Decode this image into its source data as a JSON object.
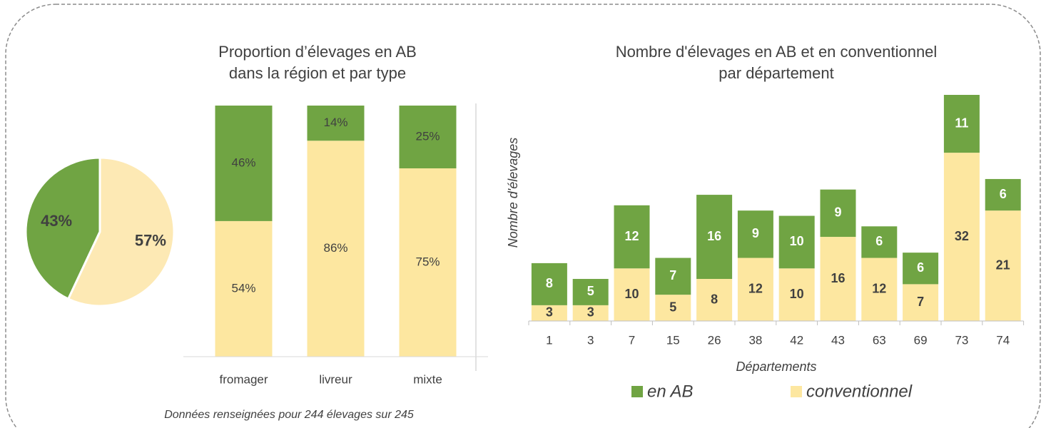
{
  "note": "Données renseignées pour 244 élevages sur 245",
  "chart_data": [
    {
      "type": "pie",
      "values": [
        43,
        57
      ],
      "value_labels": [
        "43%",
        "57%"
      ],
      "colors": [
        "#70a443",
        "#fde9b4"
      ]
    },
    {
      "type": "stacked_bar",
      "title": [
        "Proportion d’élevages en AB",
        "dans la région et par type"
      ],
      "categories": [
        "fromager",
        "livreur",
        "mixte"
      ],
      "ylim": [
        0,
        100
      ],
      "series": [
        {
          "color": "#70a443",
          "values": [
            46,
            14,
            25
          ],
          "value_labels": [
            "46%",
            "14%",
            "25%"
          ]
        },
        {
          "color": "#fde7a0",
          "values": [
            54,
            86,
            75
          ],
          "value_labels": [
            "54%",
            "86%",
            "75%"
          ]
        }
      ]
    },
    {
      "type": "stacked_bar",
      "title": [
        "Nombre d'élevages en AB et en conventionnel",
        "par département"
      ],
      "x_label": "Départements",
      "y_label": "Nombre d'élevages",
      "categories": [
        "1",
        "3",
        "7",
        "15",
        "26",
        "38",
        "42",
        "43",
        "63",
        "69",
        "73",
        "74"
      ],
      "ylim": [
        0,
        43
      ],
      "series": [
        {
          "name": "en AB",
          "color": "#70a443",
          "values": [
            8,
            5,
            12,
            7,
            16,
            9,
            10,
            9,
            6,
            6,
            11,
            6
          ]
        },
        {
          "name": "conventionnel",
          "color": "#fde7a0",
          "values": [
            3,
            3,
            10,
            5,
            8,
            12,
            10,
            16,
            12,
            7,
            32,
            21
          ]
        }
      ]
    }
  ]
}
